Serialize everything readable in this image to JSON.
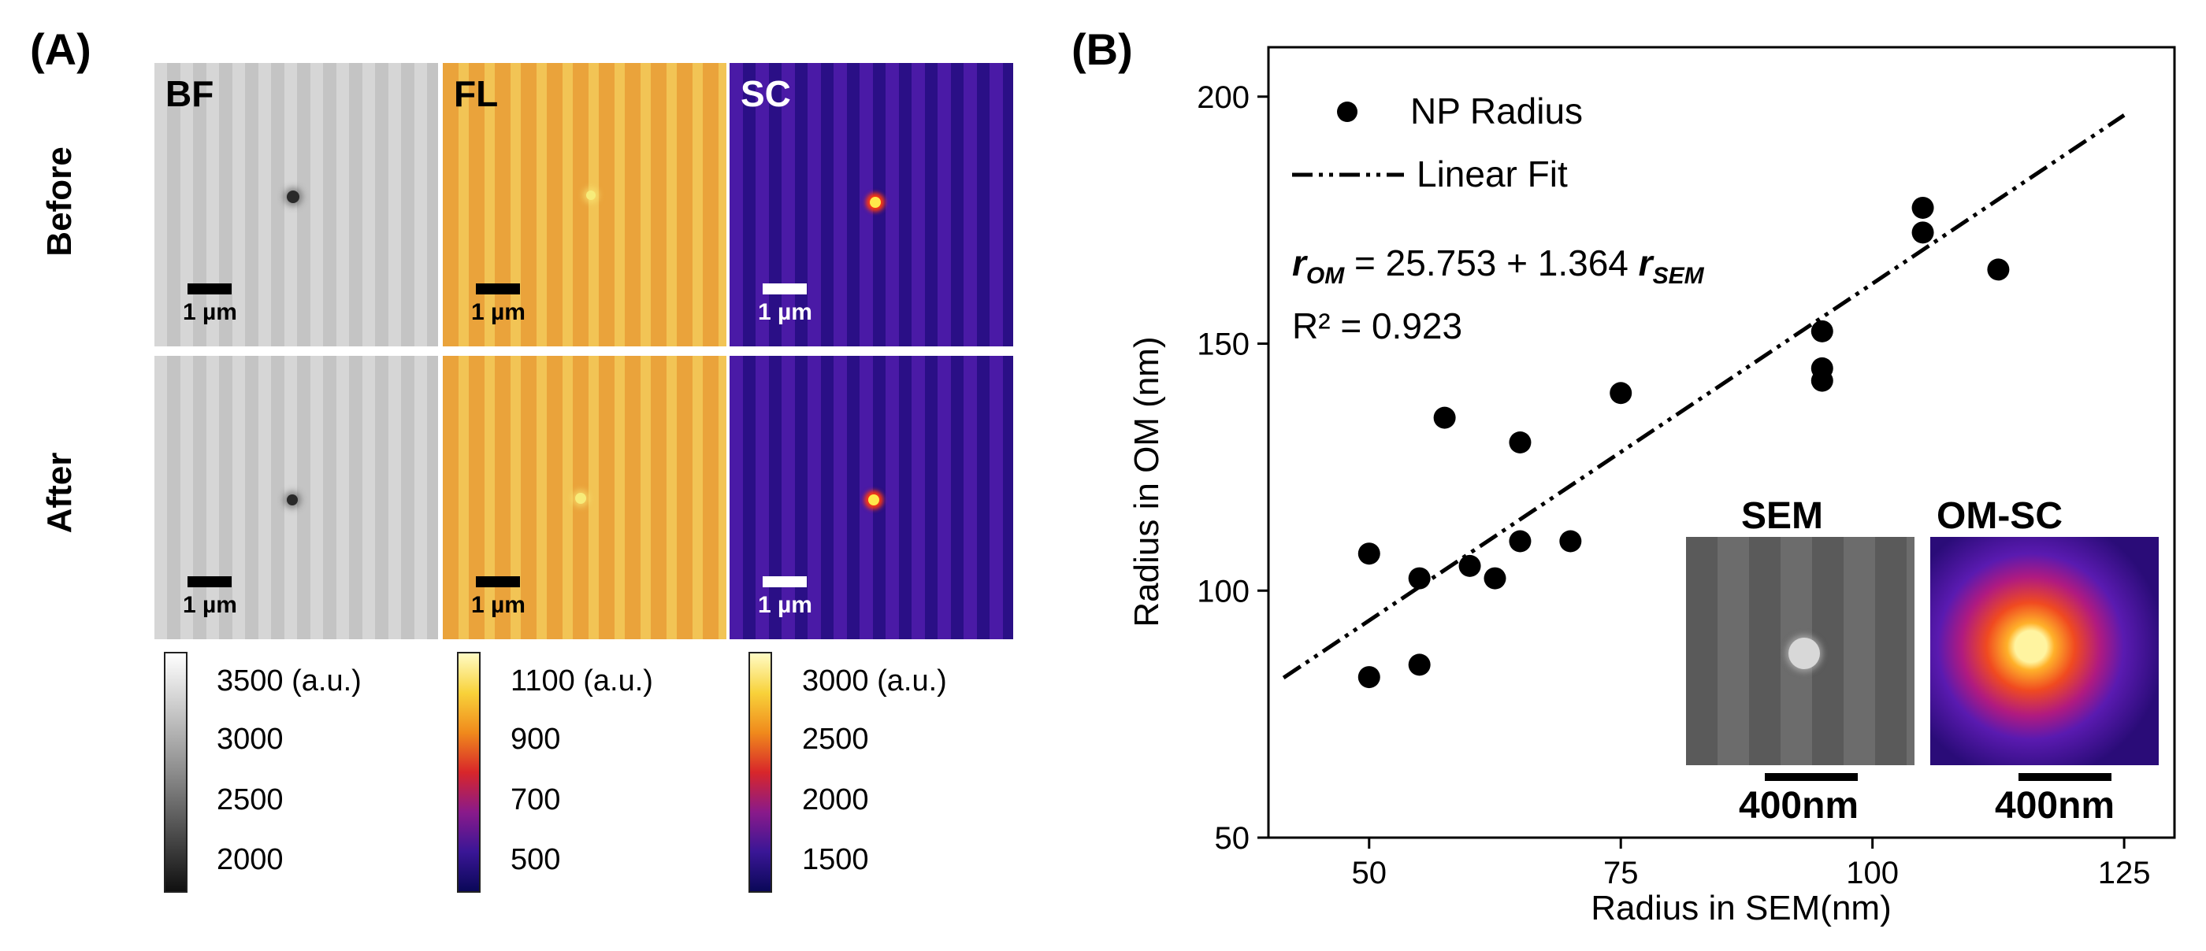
{
  "panel_a": {
    "label": "(A)",
    "row_labels": [
      "Before",
      "After"
    ],
    "tiles": {
      "bf_title": "BF",
      "fl_title": "FL",
      "sc_title": "SC",
      "scale_label": "1 µm"
    },
    "colorbars": [
      {
        "ticks": [
          "3500 (a.u.)",
          "3000",
          "2500",
          "2000"
        ]
      },
      {
        "ticks": [
          "1100 (a.u.)",
          "900",
          "700",
          "500"
        ]
      },
      {
        "ticks": [
          "3000 (a.u.)",
          "2500",
          "2000",
          "1500"
        ]
      }
    ]
  },
  "panel_b": {
    "label": "(B)",
    "legend": {
      "points": "NP Radius",
      "fit": "Linear Fit"
    },
    "equation": {
      "r_om": "r",
      "r_om_sub": "OM",
      "mid": " = 25.753 + 1.364 ",
      "r_sem": "r",
      "r_sem_sub": "SEM"
    },
    "r2": "R² = 0.923",
    "insets": {
      "sem_title": "SEM",
      "om_title": "OM-SC",
      "sem_scale": "400nm",
      "om_scale": "400nm"
    }
  },
  "colors": {
    "bf_spot": "#2a2a2a",
    "fl_spot": "#f7ec7a",
    "sc_spot": "#ff5a1a",
    "point": "#000000"
  },
  "chart_data": {
    "type": "scatter",
    "xlabel": "Radius in SEM(nm)",
    "ylabel": "Radius in OM (nm)",
    "xlim": [
      40,
      130
    ],
    "ylim": [
      50,
      210
    ],
    "xticks": [
      50,
      75,
      100,
      125
    ],
    "yticks": [
      50,
      100,
      150,
      200
    ],
    "grid": false,
    "legend_position": "top-left",
    "series": [
      {
        "name": "NP Radius",
        "type": "scatter",
        "points": [
          [
            50,
            82.5
          ],
          [
            50,
            107.5
          ],
          [
            55,
            85
          ],
          [
            55,
            102.5
          ],
          [
            57.5,
            135
          ],
          [
            60,
            105
          ],
          [
            62.5,
            102.5
          ],
          [
            65,
            110
          ],
          [
            65,
            130
          ],
          [
            70,
            110
          ],
          [
            75,
            140
          ],
          [
            95,
            142.5
          ],
          [
            95,
            145
          ],
          [
            95,
            152.5
          ],
          [
            105,
            172.5
          ],
          [
            105,
            177.5
          ],
          [
            112.5,
            165
          ]
        ]
      },
      {
        "name": "Linear Fit",
        "type": "line",
        "intercept": 25.753,
        "slope": 1.364,
        "x_range": [
          41.5,
          125
        ]
      }
    ]
  }
}
